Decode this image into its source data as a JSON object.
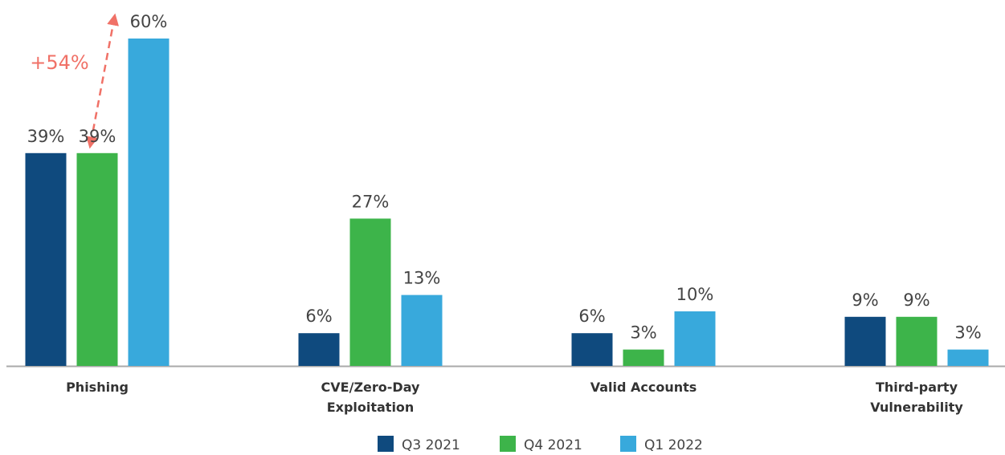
{
  "chart_data": {
    "type": "bar",
    "categories": [
      "Phishing",
      "CVE/Zero-Day Exploitation",
      "Valid Accounts",
      "Third-party Vulnerability"
    ],
    "series": [
      {
        "name": "Q3 2021",
        "color": "#0f4a7e",
        "values": [
          39,
          6,
          6,
          9
        ],
        "value_labels": [
          "39%",
          "6%",
          "6%",
          "9%"
        ]
      },
      {
        "name": "Q4 2021",
        "color": "#3db44a",
        "values": [
          39,
          27,
          3,
          9
        ],
        "value_labels": [
          "39%",
          "27%",
          "3%",
          "9%"
        ]
      },
      {
        "name": "Q1 2022",
        "color": "#38a9dc",
        "values": [
          60,
          13,
          10,
          3
        ],
        "value_labels": [
          "60%",
          "13%",
          "10%",
          "3%"
        ]
      }
    ],
    "annotations": [
      "+54%"
    ],
    "ylim": [
      0,
      60
    ],
    "grid": false
  }
}
